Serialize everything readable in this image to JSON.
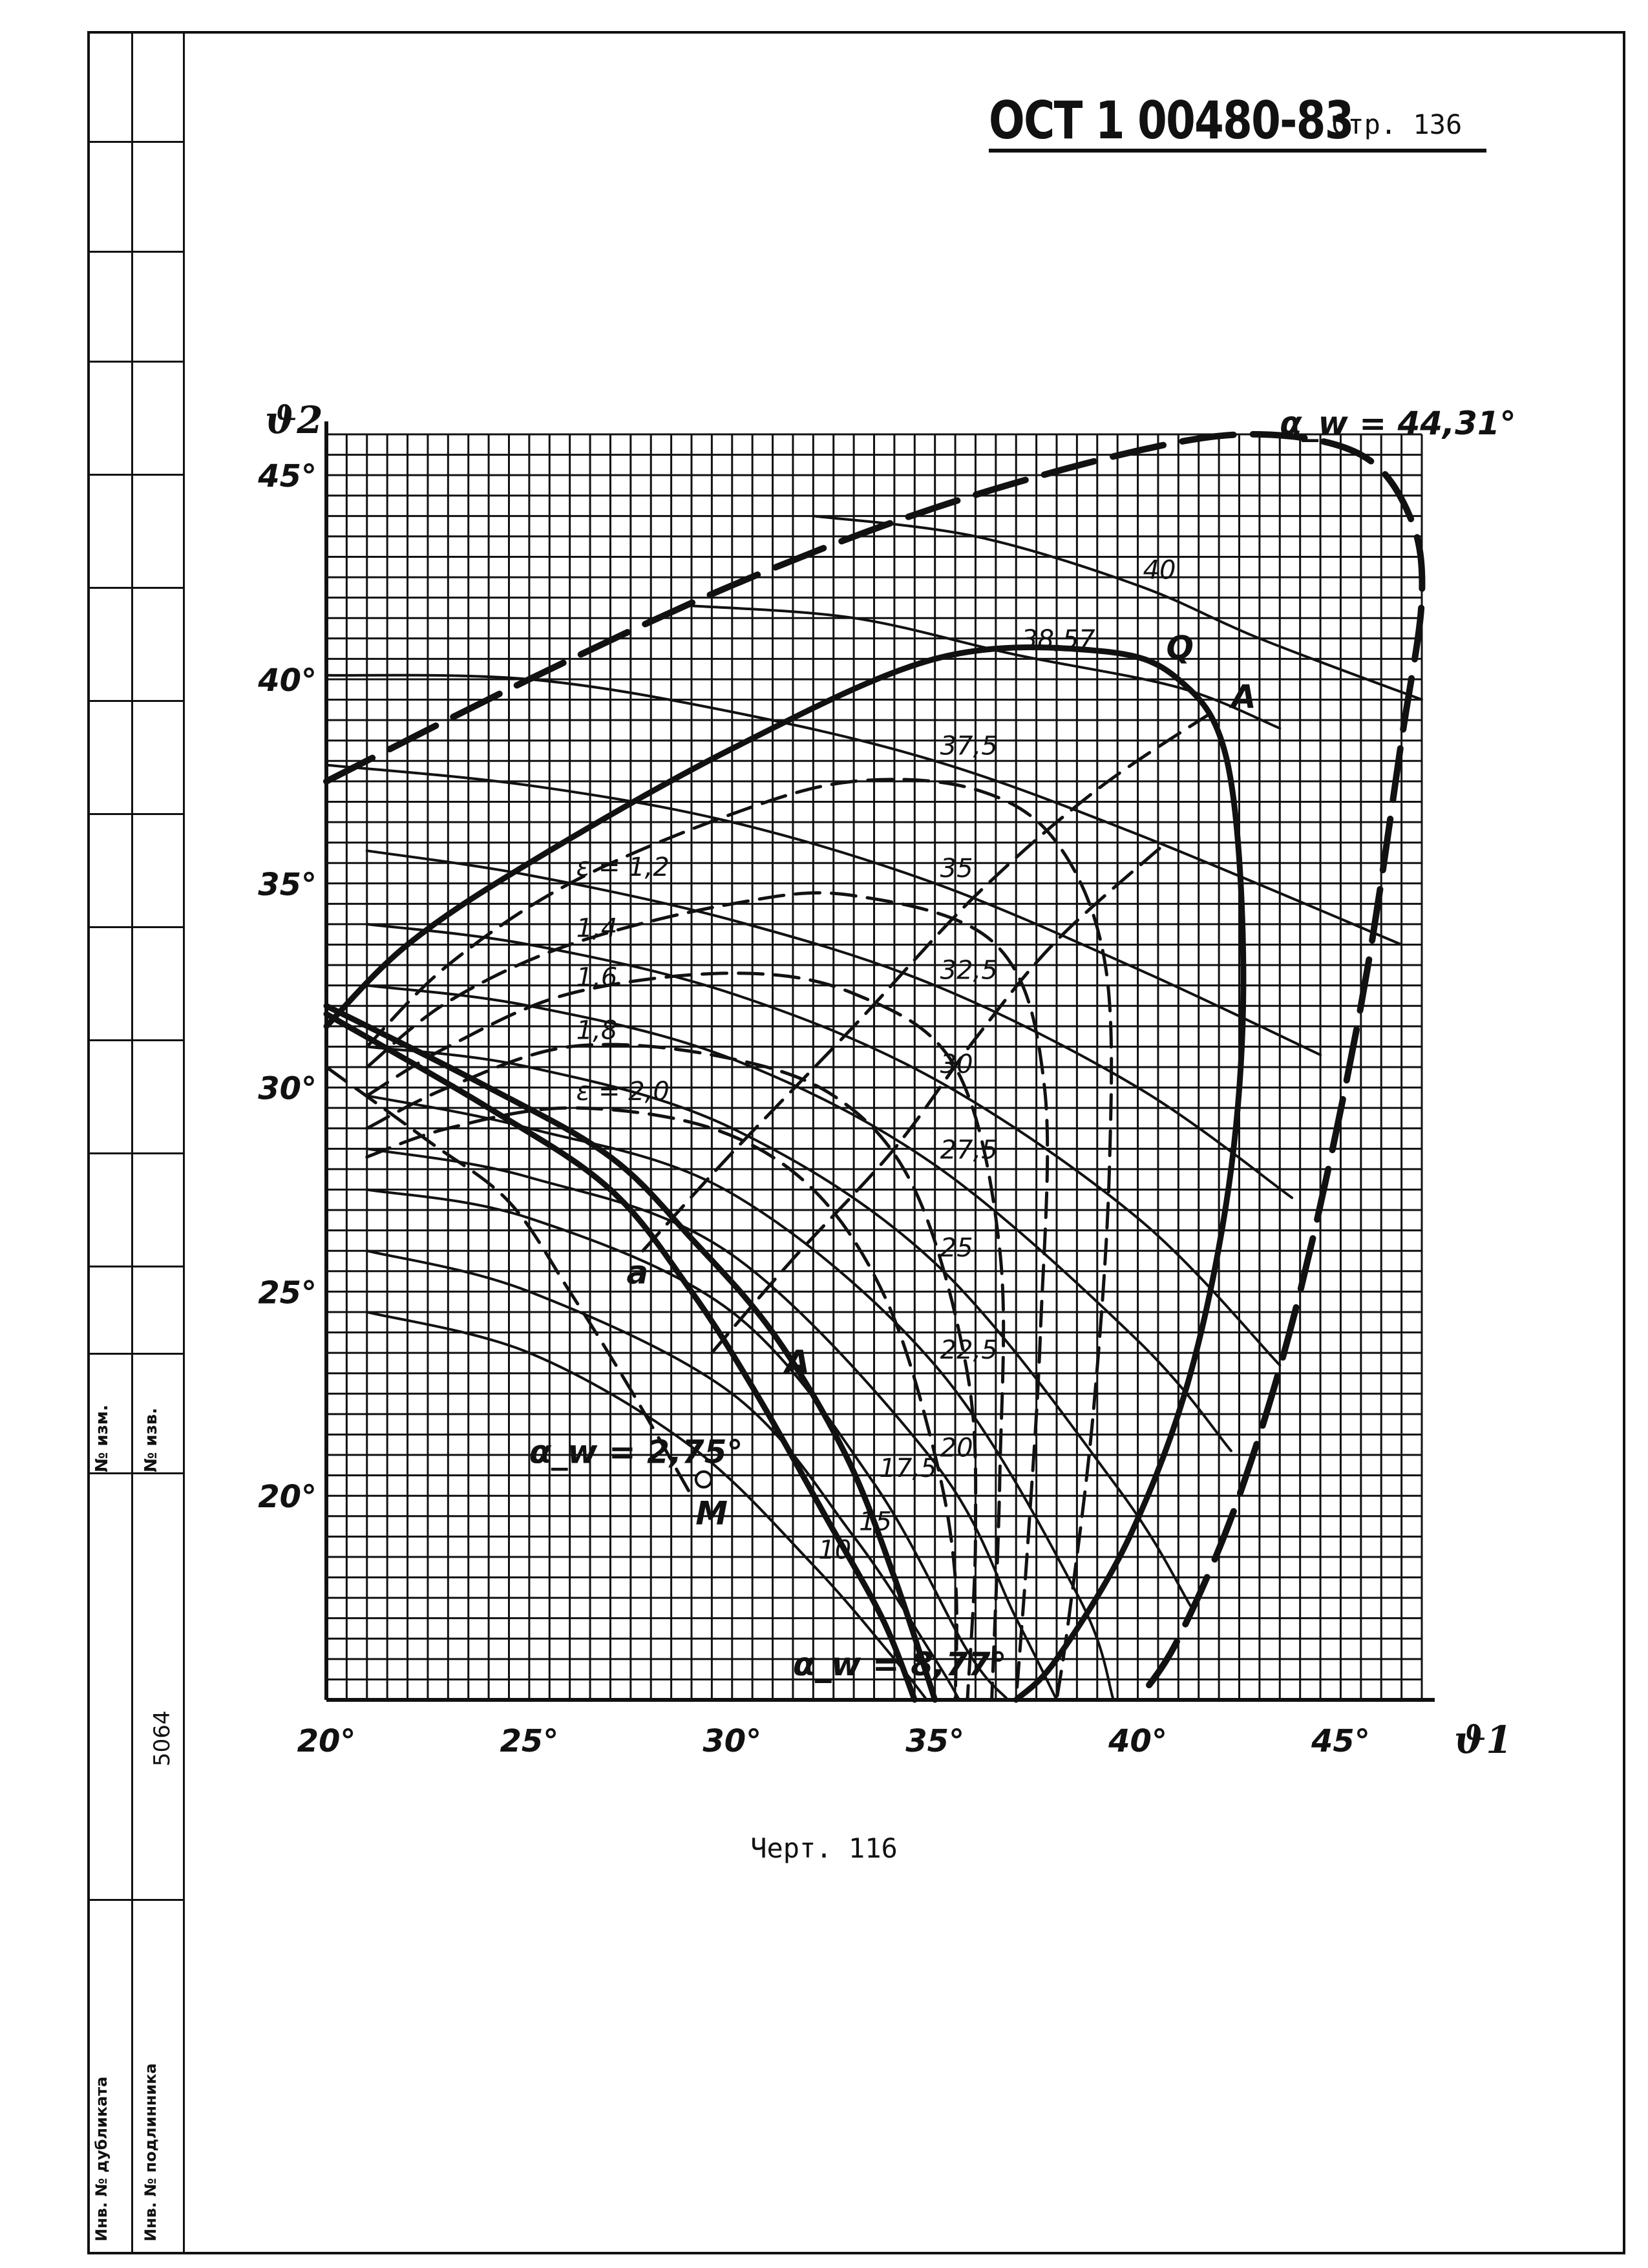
{
  "header": {
    "doc_code": "ОСТ 1 00480-83",
    "page_label": "Стр. 136"
  },
  "caption": "Черт. 116",
  "side_strip": {
    "number": "5064",
    "label_1": "№ изм.",
    "label_2": "№ изв.",
    "label_3": "Инв. № дубликата",
    "label_4": "Инв. № подлинника"
  },
  "chart_data": {
    "type": "line",
    "xlabel": "ϑ1",
    "ylabel": "ϑ2",
    "xlim": [
      20,
      47
    ],
    "ylim": [
      15,
      46
    ],
    "x_ticks": [
      20,
      25,
      30,
      35,
      40,
      45
    ],
    "x_tick_labels": [
      "20°",
      "25°",
      "30°",
      "35°",
      "40°",
      "45°"
    ],
    "y_ticks": [
      20,
      25,
      30,
      35,
      40,
      45
    ],
    "y_tick_labels": [
      "20°",
      "25°",
      "30°",
      "35°",
      "40°",
      "45°"
    ],
    "grid": true,
    "series": [
      {
        "name": "α_w = 44,31°",
        "style": "heavy-dashed",
        "points": [
          [
            20,
            37.5
          ],
          [
            25,
            40
          ],
          [
            30,
            42.3
          ],
          [
            35,
            44.2
          ],
          [
            40,
            45.6
          ],
          [
            43,
            46
          ],
          [
            45.5,
            45.5
          ],
          [
            46.7,
            44
          ],
          [
            47,
            42
          ],
          [
            46.5,
            38.5
          ],
          [
            45.5,
            32
          ],
          [
            44,
            25
          ],
          [
            42.5,
            20
          ],
          [
            41,
            16.5
          ],
          [
            40,
            15
          ]
        ]
      },
      {
        "name": "Q",
        "style": "heavy",
        "points": [
          [
            20,
            31.5
          ],
          [
            22,
            33.5
          ],
          [
            25,
            35.5
          ],
          [
            30,
            38.3
          ],
          [
            35,
            40.5
          ],
          [
            39,
            40.7
          ],
          [
            41,
            40
          ],
          [
            42.2,
            38
          ],
          [
            42.6,
            33
          ],
          [
            42.3,
            28
          ],
          [
            41.3,
            23
          ],
          [
            39.8,
            19
          ],
          [
            38,
            16
          ],
          [
            37,
            15
          ]
        ]
      },
      {
        "name": "α_w = 8,77°",
        "style": "heavy",
        "points": [
          [
            20,
            32
          ],
          [
            24,
            30
          ],
          [
            27,
            28.3
          ],
          [
            29,
            26.3
          ],
          [
            31,
            24
          ],
          [
            32.8,
            21
          ],
          [
            34,
            18
          ],
          [
            35,
            15
          ]
        ]
      },
      {
        "name": "α_w = 2,75°",
        "style": "heavy",
        "points": [
          [
            20,
            31.8
          ],
          [
            24,
            29.5
          ],
          [
            27,
            27.5
          ],
          [
            29,
            25
          ],
          [
            30.6,
            22.5
          ],
          [
            32.3,
            19.5
          ],
          [
            33.7,
            17
          ],
          [
            34.5,
            15
          ]
        ]
      },
      {
        "name": "40",
        "style": "thin",
        "points": [
          [
            32,
            44
          ],
          [
            36,
            43.5
          ],
          [
            40,
            42.3
          ],
          [
            43,
            41
          ],
          [
            47,
            39.5
          ]
        ]
      },
      {
        "name": "38,57",
        "style": "thin",
        "points": [
          [
            29,
            41.8
          ],
          [
            33,
            41.5
          ],
          [
            37,
            40.6
          ],
          [
            41,
            39.8
          ],
          [
            43.5,
            38.8
          ]
        ]
      },
      {
        "name": "37,5",
        "style": "thin",
        "points": [
          [
            20,
            40.1
          ],
          [
            25,
            40
          ],
          [
            30,
            39.2
          ],
          [
            35,
            38
          ],
          [
            40,
            36.2
          ],
          [
            46.5,
            33.5
          ]
        ]
      },
      {
        "name": "35",
        "style": "thin",
        "points": [
          [
            20,
            37.9
          ],
          [
            25,
            37.4
          ],
          [
            30,
            36.5
          ],
          [
            35,
            35
          ],
          [
            40,
            32.9
          ],
          [
            44.5,
            30.8
          ]
        ]
      },
      {
        "name": "32,5",
        "style": "thin",
        "points": [
          [
            21,
            35.8
          ],
          [
            25,
            35.2
          ],
          [
            30,
            34.1
          ],
          [
            35,
            32.5
          ],
          [
            40,
            30
          ],
          [
            43.8,
            27.3
          ]
        ]
      },
      {
        "name": "30",
        "style": "thin",
        "points": [
          [
            21,
            34
          ],
          [
            25,
            33.5
          ],
          [
            30,
            32.3
          ],
          [
            35,
            30.2
          ],
          [
            40,
            26.8
          ],
          [
            43.5,
            23.2
          ]
        ]
      },
      {
        "name": "27,5",
        "style": "thin",
        "points": [
          [
            21,
            32.5
          ],
          [
            25,
            32
          ],
          [
            30,
            30.7
          ],
          [
            35,
            28.1
          ],
          [
            40,
            23.8
          ],
          [
            42.3,
            21.1
          ]
        ]
      },
      {
        "name": "25",
        "style": "thin",
        "points": [
          [
            21,
            31
          ],
          [
            25,
            30.5
          ],
          [
            30,
            29
          ],
          [
            35,
            25.7
          ],
          [
            39.5,
            20.2
          ],
          [
            41.3,
            17.3
          ]
        ]
      },
      {
        "name": "22,5",
        "style": "thin",
        "points": [
          [
            21,
            29.8
          ],
          [
            25,
            29
          ],
          [
            30,
            27.4
          ],
          [
            35,
            23.2
          ],
          [
            38.5,
            17.6
          ],
          [
            39.4,
            15
          ]
        ]
      },
      {
        "name": "20",
        "style": "thin",
        "points": [
          [
            21,
            28.5
          ],
          [
            25,
            27.8
          ],
          [
            30,
            25.9
          ],
          [
            35,
            20.8
          ],
          [
            37,
            17
          ],
          [
            38,
            15
          ]
        ]
      },
      {
        "name": "17,5",
        "style": "thin",
        "points": [
          [
            21,
            27.5
          ],
          [
            25,
            26.8
          ],
          [
            30,
            24.5
          ],
          [
            33.5,
            20.3
          ],
          [
            35.8,
            16.2
          ],
          [
            36.8,
            15
          ]
        ]
      },
      {
        "name": "15",
        "style": "thin",
        "points": [
          [
            21,
            26
          ],
          [
            25,
            25
          ],
          [
            30,
            22.5
          ],
          [
            33,
            19
          ],
          [
            35,
            16
          ],
          [
            35.6,
            15
          ]
        ]
      },
      {
        "name": "10",
        "style": "thin",
        "points": [
          [
            21,
            24.5
          ],
          [
            25,
            23.5
          ],
          [
            29,
            21.2
          ],
          [
            32,
            18.3
          ],
          [
            34,
            16
          ],
          [
            34.8,
            15
          ]
        ]
      },
      {
        "name": "ε = 1,2",
        "style": "dashed",
        "points": [
          [
            21,
            31
          ],
          [
            23,
            33
          ],
          [
            26,
            35
          ],
          [
            30,
            36.7
          ],
          [
            33,
            37.5
          ],
          [
            36,
            37.3
          ],
          [
            38,
            36
          ],
          [
            39.2,
            33
          ],
          [
            39.3,
            28
          ],
          [
            38.9,
            22
          ],
          [
            38.3,
            17
          ],
          [
            38,
            15
          ]
        ]
      },
      {
        "name": "1,4",
        "style": "dashed",
        "points": [
          [
            21,
            30.5
          ],
          [
            23,
            32.1
          ],
          [
            26,
            33.5
          ],
          [
            30,
            34.5
          ],
          [
            33,
            34.7
          ],
          [
            36.5,
            33.5
          ],
          [
            37.7,
            30
          ],
          [
            37.6,
            24
          ],
          [
            37.3,
            19
          ],
          [
            37,
            15
          ]
        ]
      },
      {
        "name": "1,6",
        "style": "dashed",
        "points": [
          [
            21,
            29.8
          ],
          [
            23,
            31
          ],
          [
            26,
            32.3
          ],
          [
            30,
            32.8
          ],
          [
            33,
            32.3
          ],
          [
            35.5,
            30.5
          ],
          [
            36.6,
            26
          ],
          [
            36.6,
            20.5
          ],
          [
            36.4,
            15
          ]
        ]
      },
      {
        "name": "1,8",
        "style": "dashed",
        "points": [
          [
            21,
            29
          ],
          [
            23,
            30
          ],
          [
            26,
            31
          ],
          [
            29.5,
            30.8
          ],
          [
            32.5,
            29.8
          ],
          [
            34.5,
            27.5
          ],
          [
            35.8,
            23
          ],
          [
            36,
            19
          ],
          [
            35.8,
            15
          ]
        ]
      },
      {
        "name": "ε = 2,0",
        "style": "dashed",
        "points": [
          [
            21,
            28.3
          ],
          [
            23,
            29
          ],
          [
            26,
            29.5
          ],
          [
            29.5,
            29
          ],
          [
            32,
            27.5
          ],
          [
            33.8,
            24.8
          ],
          [
            35,
            21
          ],
          [
            35.5,
            18
          ],
          [
            35.5,
            15
          ]
        ]
      },
      {
        "name": "α_w = 44,31° (dashed branch)",
        "style": "dashed",
        "points": [
          [
            20,
            30.5
          ],
          [
            22.5,
            28.7
          ],
          [
            24.5,
            27.2
          ],
          [
            26,
            25
          ],
          [
            27.5,
            22.6
          ],
          [
            29,
            20
          ]
        ]
      },
      {
        "name": "A",
        "style": "dashed",
        "points": [
          [
            27.8,
            26
          ],
          [
            30,
            28.4
          ],
          [
            33,
            31.5
          ],
          [
            36,
            34.7
          ],
          [
            39,
            37.3
          ],
          [
            42,
            39.3
          ]
        ]
      },
      {
        "name": "",
        "style": "dashed",
        "points": [
          [
            29.5,
            23.5
          ],
          [
            31.5,
            25.8
          ],
          [
            34,
            28.5
          ],
          [
            36,
            31.2
          ],
          [
            38,
            33.6
          ],
          [
            40.7,
            36
          ]
        ]
      }
    ],
    "annotations": [
      {
        "text": "α_w = 44,31°",
        "x": 43.5,
        "y": 46
      },
      {
        "text": "Q",
        "x": 40.7,
        "y": 40.5
      },
      {
        "text": "A",
        "x": 42.3,
        "y": 39.3
      },
      {
        "text": "A",
        "x": 31.3,
        "y": 23
      },
      {
        "text": "a",
        "x": 27.4,
        "y": 25.2
      },
      {
        "text": "M",
        "x": 29.1,
        "y": 19.3
      },
      {
        "text": "α_w = 8,77°",
        "x": 31.5,
        "y": 15.6
      },
      {
        "text": "α_w = 2,75°",
        "x": 25,
        "y": 20.8
      }
    ]
  }
}
